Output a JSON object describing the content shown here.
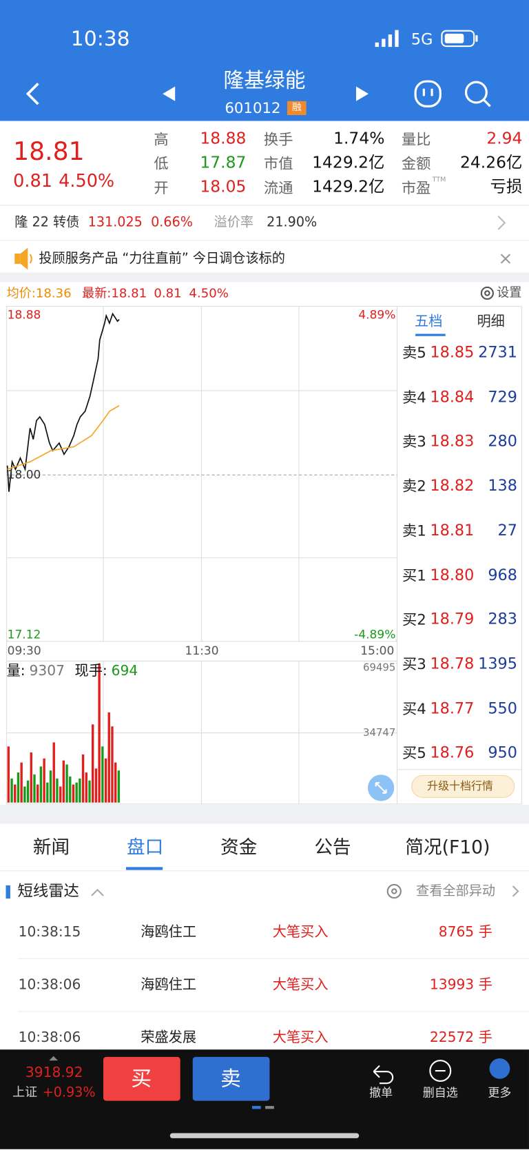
{
  "status_bar": {
    "time": "10:38",
    "network": "5G"
  },
  "header": {
    "name": "隆基绿能",
    "code": "601012",
    "badge": "融"
  },
  "quote": {
    "price": "18.81",
    "change": "0.81",
    "change_pct": "4.50%",
    "stats": [
      {
        "label": "高",
        "value": "18.88"
      },
      {
        "label": "换手",
        "value": "1.74%"
      },
      {
        "label": "量比",
        "value": "2.94"
      },
      {
        "label": "低",
        "value": "17.87"
      },
      {
        "label": "市值",
        "value": "1429.2亿"
      },
      {
        "label": "金额",
        "value": "24.26亿"
      },
      {
        "label": "开",
        "value": "18.05"
      },
      {
        "label": "流通",
        "value": "1429.2亿"
      },
      {
        "label": "市盈",
        "sup": "TTM",
        "value": "亏损"
      }
    ]
  },
  "bond": {
    "name": "隆 22 转债",
    "price": "131.025",
    "change_pct": "0.66%",
    "premium_label": "溢价率",
    "premium": "21.90%"
  },
  "notice": {
    "text": "投顾服务产品 “力往直前” 今日调仓该标的"
  },
  "chart_legend": {
    "avg": "均价:18.36",
    "latest": "最新:18.81",
    "change": "0.81",
    "change_pct": "4.50%",
    "settings": "设置"
  },
  "chart_data": [
    {
      "type": "line",
      "ylim": [
        17.12,
        18.88
      ],
      "yticks": [
        18.88,
        {
          "value": 18.0,
          "label": "18.00"
        },
        17.12
      ],
      "y2lim": [
        -4.89,
        4.89
      ],
      "y2ticks": [
        {
          "value": 4.89,
          "label": "4.89%"
        },
        {
          "value": -4.89,
          "label": "-4.89%"
        }
      ],
      "xlim": [
        0,
        240
      ],
      "xticks": [
        {
          "value": 0,
          "label": "09:30"
        },
        {
          "value": 120,
          "label": "11:30"
        },
        {
          "value": 240,
          "label": "15:00"
        }
      ],
      "series": [
        {
          "color": "#111111",
          "x": [
            0,
            1,
            3,
            5,
            8,
            11,
            14,
            16,
            18,
            20,
            23,
            26,
            28,
            32,
            35,
            38,
            41,
            43,
            45,
            48,
            51,
            53,
            56,
            57,
            60,
            61,
            63,
            65,
            68,
            69
          ],
          "values": [
            18.05,
            17.91,
            18.07,
            18.03,
            18.09,
            18.03,
            18.25,
            18.19,
            18.29,
            18.31,
            18.27,
            18.17,
            18.13,
            18.17,
            18.11,
            18.15,
            18.21,
            18.27,
            18.31,
            18.34,
            18.42,
            18.5,
            18.62,
            18.72,
            18.81,
            18.85,
            18.81,
            18.86,
            18.82,
            18.83
          ]
        },
        {
          "color": "#f5a623",
          "x": [
            0,
            14,
            27,
            41,
            52,
            59,
            63,
            69
          ],
          "values": [
            18.03,
            18.07,
            18.13,
            18.15,
            18.21,
            18.29,
            18.34,
            18.37
          ]
        }
      ]
    },
    {
      "type": "bar",
      "labels": {
        "volume_label": "量:",
        "volume": "9307",
        "current_label": "现手:",
        "current": "694"
      },
      "ylim": [
        0,
        69495
      ],
      "yticks": [
        69495,
        34747
      ],
      "xlim": [
        0,
        240
      ],
      "x": [
        0,
        2,
        4,
        6,
        8,
        10,
        12,
        14,
        16,
        18,
        20,
        22,
        24,
        26,
        28,
        30,
        32,
        34,
        36,
        38,
        40,
        42,
        44,
        46,
        48,
        50,
        52,
        54,
        56,
        58,
        60,
        62,
        64,
        66,
        68
      ],
      "values": [
        28000,
        12000,
        9000,
        15000,
        20000,
        8000,
        11000,
        25000,
        14000,
        9000,
        18000,
        22000,
        10000,
        16000,
        30000,
        12000,
        8000,
        21000,
        19000,
        13000,
        9000,
        10000,
        12000,
        24000,
        15000,
        11000,
        39000,
        17000,
        69000,
        28000,
        22000,
        45000,
        38000,
        20000,
        16000
      ],
      "colors": [
        "#e0201e",
        "#1a9a1a",
        "#e0201e",
        "#1a9a1a",
        "#e0201e",
        "#1a9a1a",
        "#1a9a1a",
        "#e0201e",
        "#1a9a1a",
        "#e0201e",
        "#1a9a1a",
        "#e0201e",
        "#1a9a1a",
        "#1a9a1a",
        "#e0201e",
        "#1a9a1a",
        "#e0201e",
        "#e0201e",
        "#1a9a1a",
        "#1a9a1a",
        "#e0201e",
        "#1a9a1a",
        "#1a9a1a",
        "#e0201e",
        "#e0201e",
        "#1a9a1a",
        "#e0201e",
        "#e0201e",
        "#e0201e",
        "#1a9a1a",
        "#e0201e",
        "#e0201e",
        "#e0201e",
        "#e0201e",
        "#1a9a1a"
      ]
    }
  ],
  "order_book": {
    "tabs": [
      "五档",
      "明细"
    ],
    "rows": [
      {
        "label": "卖5",
        "price": "18.85",
        "volume": "2731"
      },
      {
        "label": "卖4",
        "price": "18.84",
        "volume": "729"
      },
      {
        "label": "卖3",
        "price": "18.83",
        "volume": "280"
      },
      {
        "label": "卖2",
        "price": "18.82",
        "volume": "138"
      },
      {
        "label": "卖1",
        "price": "18.81",
        "volume": "27"
      },
      {
        "label": "买1",
        "price": "18.80",
        "volume": "968"
      },
      {
        "label": "买2",
        "price": "18.79",
        "volume": "283"
      },
      {
        "label": "买3",
        "price": "18.78",
        "volume": "1395"
      },
      {
        "label": "买4",
        "price": "18.77",
        "volume": "550"
      },
      {
        "label": "买5",
        "price": "18.76",
        "volume": "950"
      }
    ],
    "upgrade": "升级十档行情"
  },
  "tabs": [
    "新闻",
    "盘口",
    "资金",
    "公告",
    "简况(F10)"
  ],
  "radar": {
    "title": "短线雷达",
    "link": "查看全部异动",
    "rows": [
      {
        "time": "10:38:15",
        "name": "海鸥住工",
        "action": "大笔买入",
        "volume": "8765 手"
      },
      {
        "time": "10:38:06",
        "name": "海鸥住工",
        "action": "大笔买入",
        "volume": "13993 手"
      },
      {
        "time": "10:38:06",
        "name": "荣盛发展",
        "action": "大笔买入",
        "volume": "22572 手"
      }
    ]
  },
  "bottom_bar": {
    "index_value": "3918.92",
    "index_name": "上证",
    "index_pct": "+0.93%",
    "buy": "买",
    "sell": "卖",
    "actions": [
      "撤单",
      "删自选",
      "更多"
    ]
  }
}
